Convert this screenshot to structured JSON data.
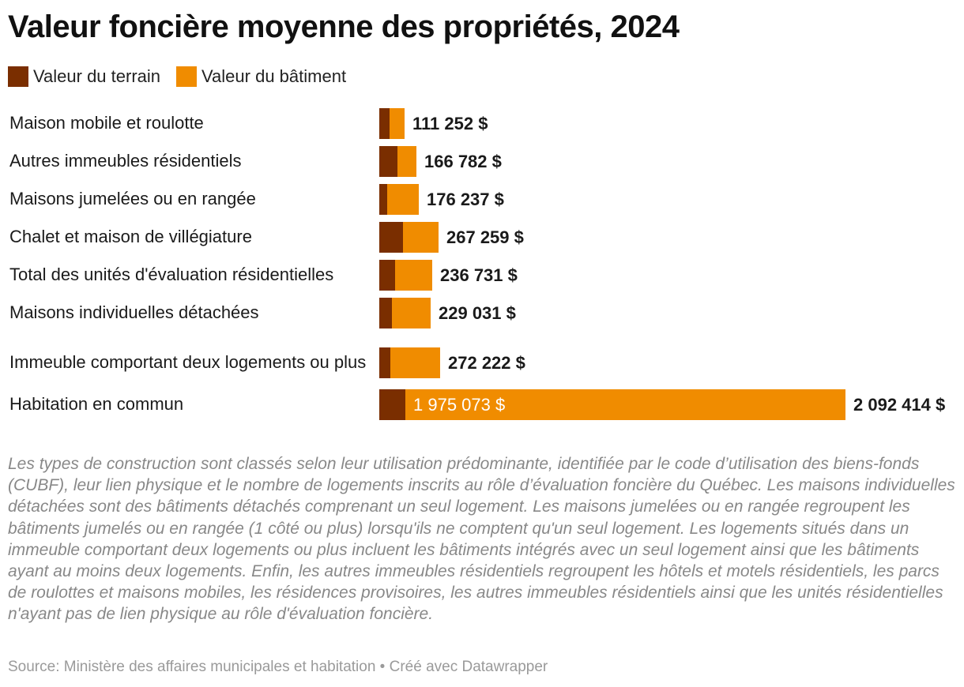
{
  "title": "Valeur foncière moyenne des propriétés, 2024",
  "legend": [
    {
      "label": "Valeur du terrain",
      "color": "#7a2e00"
    },
    {
      "label": "Valeur du bâtiment",
      "color": "#f08c00"
    }
  ],
  "chart_data": {
    "type": "bar",
    "orientation": "horizontal",
    "stacked": true,
    "categories": [
      "Maison mobile et roulotte",
      "Autres immeubles résidentiels",
      "Maisons jumelées ou en rangée",
      "Chalet et maison de villégiature",
      "Total des unités d'évaluation résidentielles",
      "Maisons individuelles détachées",
      "Immeuble comportant deux logements ou plus",
      "Habitation en commun"
    ],
    "series": [
      {
        "name": "Valeur du terrain",
        "color": "#7a2e00",
        "values": [
          45000,
          80000,
          35000,
          107000,
          70000,
          55000,
          50000,
          117341
        ]
      },
      {
        "name": "Valeur du bâtiment",
        "color": "#f08c00",
        "values": [
          66252,
          86782,
          141237,
          160259,
          166731,
          174031,
          222222,
          1975073
        ]
      }
    ],
    "value_labels": [
      "111 252 $",
      "166 782 $",
      "176 237 $",
      "267 259 $",
      "236 731 $",
      "229 031 $",
      "272 222 $",
      "2 092 414 $"
    ],
    "inner_labels": [
      "",
      "",
      "",
      "",
      "",
      "",
      "",
      "1 975 073 $"
    ],
    "xlim": [
      0,
      2092414
    ]
  },
  "notes": "Les types de construction sont classés selon leur utilisation prédominante, identifiée par le code d’utilisation des biens-fonds (CUBF), leur lien physique et le nombre de logements inscrits au rôle d’évaluation foncière du Québec. Les maisons individuelles détachées sont des bâtiments détachés comprenant un seul logement. Les maisons jumelées ou en rangée regroupent les bâtiments jumelés ou en rangée (1 côté ou plus) lorsqu'ils ne comptent qu'un seul logement. Les logements situés dans un immeuble comportant deux logements ou plus incluent les bâtiments intégrés avec un seul logement ainsi que les bâtiments ayant au moins deux logements. Enfin, les autres immeubles résidentiels regroupent les hôtels et motels résidentiels, les parcs de roulottes et maisons mobiles, les résidences provisoires, les autres immeubles résidentiels ainsi que les unités résidentielles n'ayant pas de lien physique au rôle d'évaluation foncière.",
  "source": "Source: Ministère des affaires municipales et habitation • Créé avec Datawrapper"
}
